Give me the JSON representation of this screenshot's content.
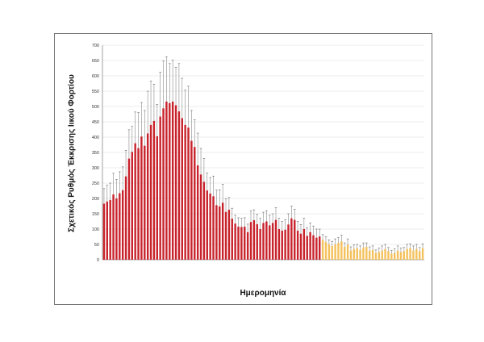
{
  "chart_data": {
    "type": "bar",
    "title": "",
    "xlabel": "Ημερομηνία",
    "ylabel": "Σχετικός Ρυθμός Έκκρισης Ιικού Φορτίου",
    "ylim": [
      0,
      700
    ],
    "yticks": [
      0,
      50,
      100,
      150,
      200,
      250,
      300,
      350,
      400,
      450,
      500,
      550,
      600,
      650,
      700
    ],
    "grid": true,
    "legend": "none",
    "colors": {
      "series_early": "#c8232c",
      "series_late": "#f4c15c",
      "error_bar": "#888888"
    },
    "series": [
      {
        "color": "#c8232c",
        "values": [
          183,
          190,
          195,
          213,
          200,
          217,
          227,
          272,
          330,
          352,
          380,
          364,
          402,
          372,
          412,
          440,
          453,
          403,
          467,
          494,
          516,
          511,
          516,
          504,
          484,
          462,
          440,
          431,
          388,
          368,
          308,
          278,
          254,
          226,
          216,
          207,
          178,
          174,
          186,
          156,
          163,
          134,
          118,
          108,
          107,
          108,
          90,
          123,
          129,
          116,
          100,
          120,
          125,
          112,
          120,
          130,
          100,
          95,
          98,
          115,
          135,
          130,
          95,
          85,
          100,
          78,
          90,
          80,
          72,
          76
        ],
        "error_upper": [
          232,
          243,
          250,
          282,
          262,
          287,
          303,
          357,
          424,
          435,
          482,
          480,
          513,
          487,
          550,
          583,
          573,
          507,
          612,
          648,
          662,
          640,
          651,
          628,
          640,
          592,
          553,
          566,
          487,
          457,
          413,
          363,
          330,
          283,
          268,
          273,
          227,
          228,
          246,
          199,
          203,
          168,
          145,
          137,
          135,
          137,
          116,
          160,
          163,
          148,
          135,
          155,
          160,
          145,
          150,
          170,
          135,
          125,
          130,
          150,
          175,
          165,
          125,
          115,
          135,
          105,
          120,
          110,
          100,
          100
        ]
      },
      {
        "color": "#f4c15c",
        "values": [
          65,
          58,
          50,
          45,
          50,
          55,
          60,
          42,
          50,
          30,
          35,
          38,
          32,
          40,
          42,
          30,
          32,
          22,
          25,
          30,
          35,
          28,
          20,
          22,
          30,
          25,
          28,
          35,
          38,
          30,
          35,
          28,
          38
        ],
        "error_upper": [
          82,
          75,
          65,
          60,
          68,
          72,
          80,
          55,
          68,
          42,
          48,
          50,
          45,
          55,
          55,
          42,
          45,
          32,
          38,
          45,
          50,
          40,
          30,
          35,
          45,
          38,
          40,
          50,
          52,
          45,
          50,
          40,
          52
        ]
      }
    ]
  }
}
